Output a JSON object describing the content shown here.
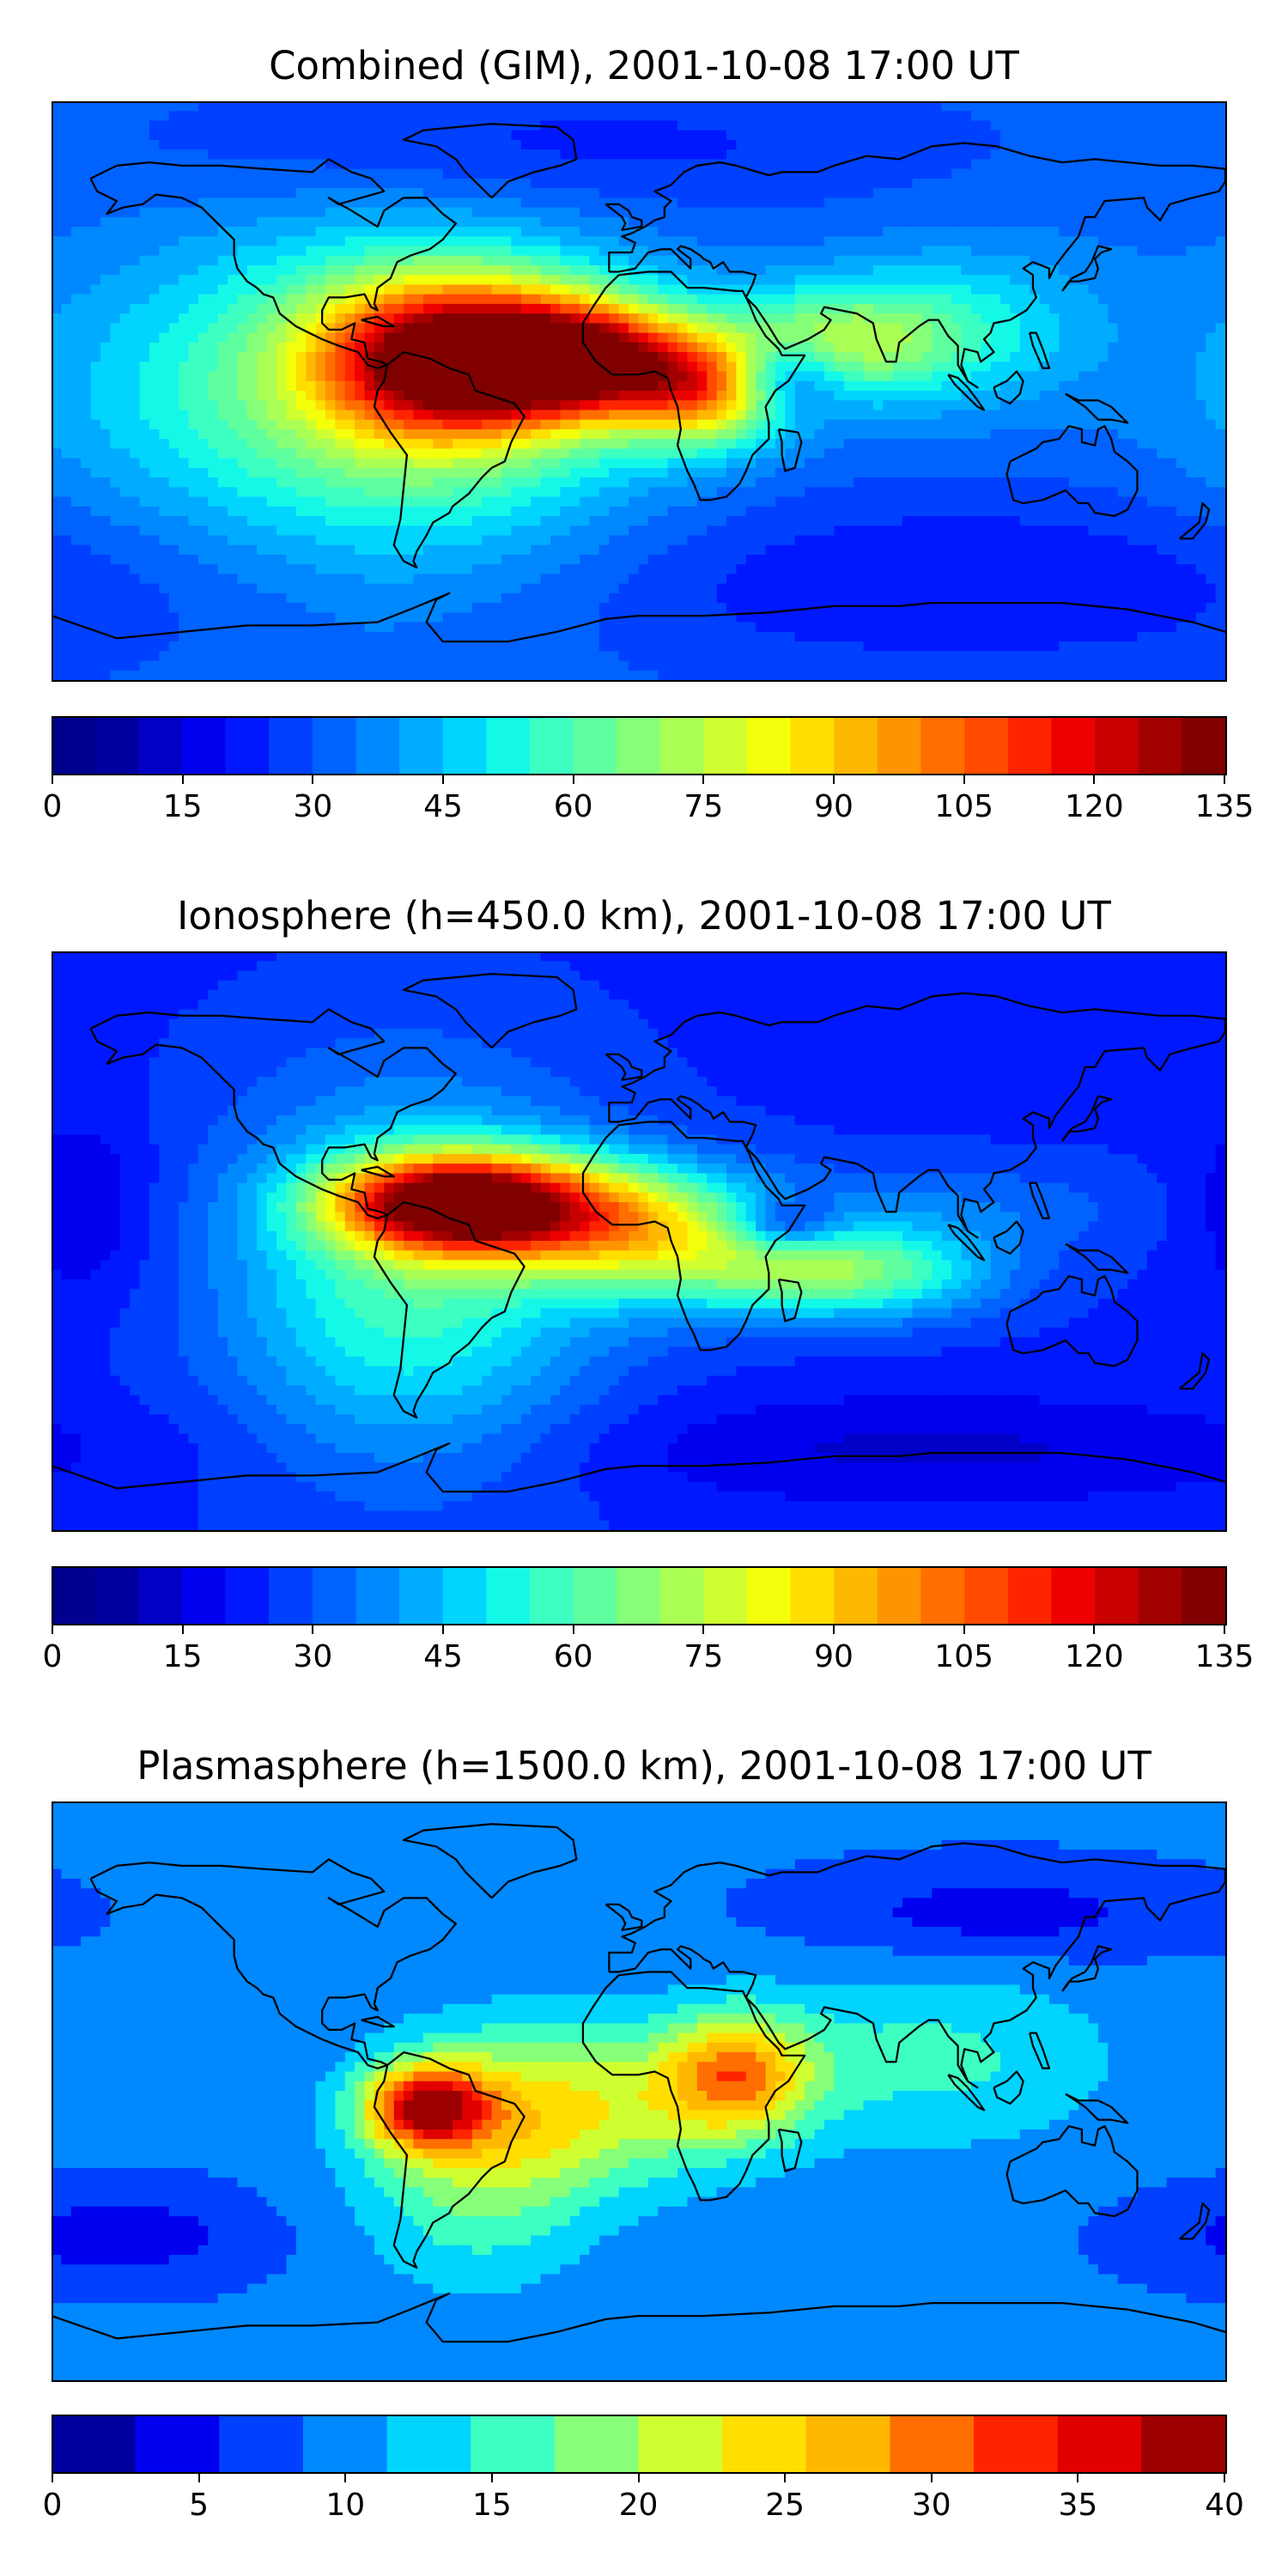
{
  "panels": [
    {
      "title": "Combined (GIM), 2001-10-08 17:00 UT",
      "scale_min": 0,
      "scale_max": 135,
      "colorbar": {
        "ticks": [
          "0",
          "15",
          "30",
          "45",
          "60",
          "75",
          "90",
          "105",
          "120",
          "135"
        ],
        "colors": [
          "#00008f",
          "#00009f",
          "#0000c6",
          "#0000ef",
          "#0018ff",
          "#0040ff",
          "#0062ff",
          "#0088ff",
          "#00acff",
          "#00d4ff",
          "#14f8e8",
          "#3dffc2",
          "#5fff9f",
          "#86ff79",
          "#aaff55",
          "#cfff30",
          "#f4ff0b",
          "#ffde00",
          "#ffb800",
          "#ff9400",
          "#ff6e00",
          "#ff4a00",
          "#ff2400",
          "#ef0000",
          "#c80000",
          "#a30000",
          "#800000"
        ]
      },
      "field": {
        "base": 32,
        "blobs": [
          {
            "lon": -55,
            "lat": 10,
            "amp": 88,
            "slon": 28,
            "slat": 16
          },
          {
            "lon": -15,
            "lat": 10,
            "amp": 72,
            "slon": 22,
            "slat": 12
          },
          {
            "lon": 20,
            "lat": 0,
            "amp": 55,
            "slon": 18,
            "slat": 12
          },
          {
            "lon": -70,
            "lat": 0,
            "amp": 40,
            "slon": 50,
            "slat": 35
          },
          {
            "lon": 60,
            "lat": 15,
            "amp": 35,
            "slon": 25,
            "slat": 12
          },
          {
            "lon": 45,
            "lat": 5,
            "amp": -30,
            "slon": 12,
            "slat": 8
          },
          {
            "lon": 100,
            "lat": 20,
            "amp": 18,
            "slon": 30,
            "slat": 18
          },
          {
            "lon": -150,
            "lat": 0,
            "amp": 8,
            "slon": 40,
            "slat": 30
          },
          {
            "lon": -30,
            "lat": 75,
            "amp": -10,
            "slon": 80,
            "slat": 15
          },
          {
            "lon": 100,
            "lat": -60,
            "amp": -12,
            "slon": 90,
            "slat": 20
          }
        ]
      }
    },
    {
      "title": "Ionosphere  (h=450.0 km), 2001-10-08 17:00 UT",
      "scale_min": 0,
      "scale_max": 135,
      "colorbar": {
        "ticks": [
          "0",
          "15",
          "30",
          "45",
          "60",
          "75",
          "90",
          "105",
          "120",
          "135"
        ],
        "colors": [
          "#00008f",
          "#00009f",
          "#0000c6",
          "#0000ef",
          "#0018ff",
          "#0040ff",
          "#0062ff",
          "#0088ff",
          "#00acff",
          "#00d4ff",
          "#14f8e8",
          "#3dffc2",
          "#5fff9f",
          "#86ff79",
          "#aaff55",
          "#cfff30",
          "#f4ff0b",
          "#ffde00",
          "#ffb800",
          "#ff9400",
          "#ff6e00",
          "#ff4a00",
          "#ff2400",
          "#ef0000",
          "#c80000",
          "#a30000",
          "#800000"
        ]
      },
      "field": {
        "base": 24,
        "blobs": [
          {
            "lon": -60,
            "lat": 12,
            "amp": 78,
            "slon": 25,
            "slat": 10
          },
          {
            "lon": -30,
            "lat": 10,
            "amp": 50,
            "slon": 30,
            "slat": 12
          },
          {
            "lon": 10,
            "lat": 0,
            "amp": 40,
            "slon": 30,
            "slat": 14
          },
          {
            "lon": -70,
            "lat": -10,
            "amp": 35,
            "slon": 40,
            "slat": 40
          },
          {
            "lon": 65,
            "lat": -10,
            "amp": 40,
            "slon": 30,
            "slat": 10
          },
          {
            "lon": 45,
            "lat": 5,
            "amp": -25,
            "slon": 12,
            "slat": 6
          },
          {
            "lon": 100,
            "lat": 10,
            "amp": 10,
            "slon": 40,
            "slat": 10
          },
          {
            "lon": -170,
            "lat": 10,
            "amp": -10,
            "slon": 15,
            "slat": 20
          },
          {
            "lon": 90,
            "lat": -65,
            "amp": -10,
            "slon": 80,
            "slat": 12
          }
        ]
      }
    },
    {
      "title": "Plasmasphere (h=1500.0 km), 2001-10-08 17:00 UT",
      "scale_min": 0,
      "scale_max": 40,
      "colorbar": {
        "ticks": [
          "0",
          "5",
          "10",
          "15",
          "20",
          "25",
          "30",
          "35",
          "40"
        ],
        "colors": [
          "#00009f",
          "#0000ef",
          "#0040ff",
          "#0088ff",
          "#00d4ff",
          "#3dffc2",
          "#86ff79",
          "#cfff30",
          "#ffde00",
          "#ffb800",
          "#ff6e00",
          "#ff2400",
          "#e00000",
          "#9c0000"
        ]
      },
      "field": {
        "base": 9,
        "blobs": [
          {
            "lon": -65,
            "lat": -5,
            "amp": 23,
            "slon": 13,
            "slat": 9
          },
          {
            "lon": 30,
            "lat": 5,
            "amp": 17,
            "slon": 16,
            "slat": 13
          },
          {
            "lon": -20,
            "lat": -5,
            "amp": 12,
            "slon": 35,
            "slat": 18
          },
          {
            "lon": -50,
            "lat": -25,
            "amp": 8,
            "slon": 25,
            "slat": 25
          },
          {
            "lon": 90,
            "lat": 10,
            "amp": 6,
            "slon": 40,
            "slat": 20
          },
          {
            "lon": 110,
            "lat": 55,
            "amp": -5,
            "slon": 40,
            "slat": 10
          },
          {
            "lon": -160,
            "lat": -45,
            "amp": -5,
            "slon": 30,
            "slat": 10
          }
        ]
      }
    }
  ]
}
